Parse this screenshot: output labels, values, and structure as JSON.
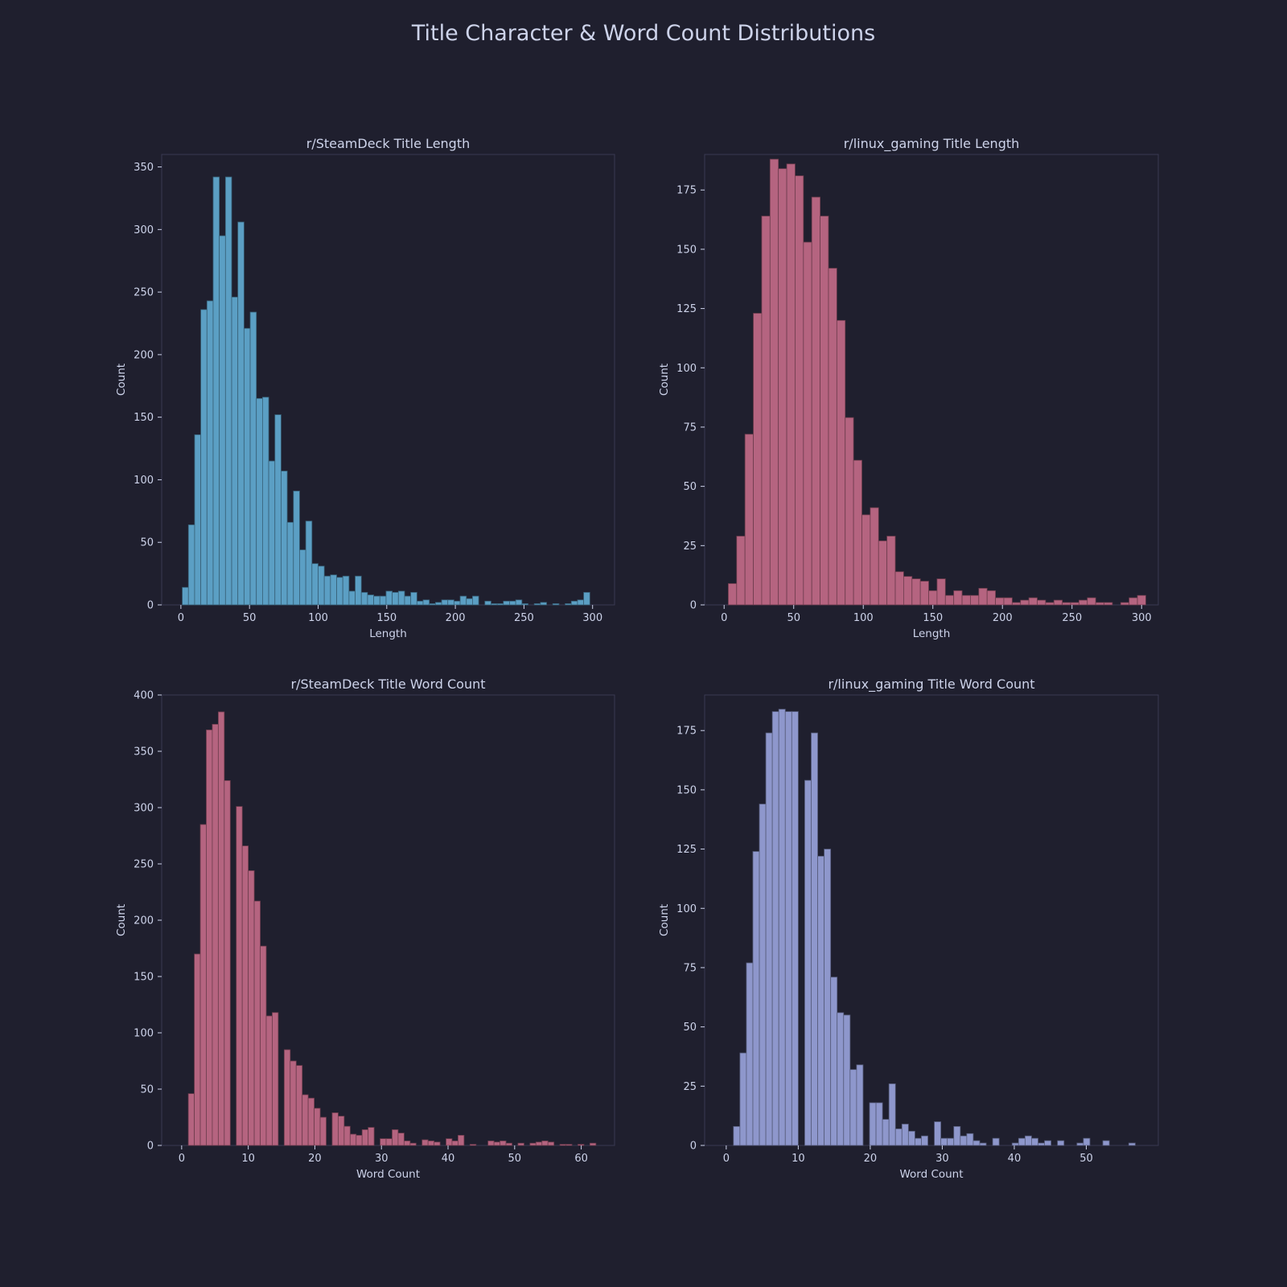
{
  "figure": {
    "title": "Title Character & Word Count Distributions",
    "background": "#1f1f2e",
    "panel_border": "#3a3a52",
    "text_color": "#cdd3ea"
  },
  "chart_data": [
    {
      "type": "bar",
      "title": "r/SteamDeck Title Length",
      "xlabel": "Length",
      "ylabel": "Count",
      "xlim": [
        -14,
        316
      ],
      "ylim": [
        0,
        360
      ],
      "xticks": [
        0,
        50,
        100,
        150,
        200,
        250,
        300
      ],
      "yticks": [
        0,
        50,
        100,
        150,
        200,
        250,
        300,
        350
      ],
      "color": "#5b9fc4",
      "bin_width": 4.5,
      "bin_start": 1,
      "values": [
        14,
        64,
        136,
        236,
        243,
        342,
        295,
        342,
        246,
        306,
        221,
        234,
        165,
        166,
        115,
        152,
        107,
        66,
        91,
        44,
        67,
        33,
        31,
        23,
        24,
        22,
        23,
        11,
        23,
        10,
        8,
        7,
        7,
        11,
        10,
        11,
        7,
        10,
        3,
        4,
        1,
        2,
        4,
        4,
        3,
        7,
        5,
        7,
        0,
        3,
        1,
        1,
        3,
        3,
        4,
        1,
        0,
        1,
        2,
        0,
        1,
        0,
        1,
        3,
        4,
        10
      ],
      "grid": false
    },
    {
      "type": "bar",
      "title": "r/linux_gaming Title Length",
      "xlabel": "Length",
      "ylabel": "Count",
      "xlim": [
        -14,
        312
      ],
      "ylim": [
        0,
        190
      ],
      "xticks": [
        0,
        50,
        100,
        150,
        200,
        250,
        300
      ],
      "yticks": [
        0,
        25,
        50,
        75,
        100,
        125,
        150,
        175
      ],
      "color": "#b56480",
      "bin_width": 6,
      "bin_start": 3,
      "values": [
        9,
        29,
        72,
        123,
        164,
        188,
        184,
        186,
        181,
        153,
        172,
        164,
        142,
        120,
        79,
        61,
        38,
        41,
        27,
        29,
        14,
        12,
        11,
        10,
        6,
        11,
        4,
        6,
        4,
        4,
        7,
        6,
        3,
        3,
        1,
        2,
        3,
        2,
        1,
        2,
        1,
        1,
        2,
        3,
        1,
        1,
        0,
        1,
        3,
        4
      ],
      "grid": false
    },
    {
      "type": "bar",
      "title": "r/SteamDeck Title Word Count",
      "xlabel": "Word Count",
      "ylabel": "Count",
      "xlim": [
        -3,
        65
      ],
      "ylim": [
        0,
        400
      ],
      "xticks": [
        0,
        10,
        20,
        30,
        40,
        50,
        60
      ],
      "yticks": [
        0,
        50,
        100,
        150,
        200,
        250,
        300,
        350,
        400
      ],
      "color": "#b56480",
      "bin_width": 0.9,
      "bin_start": 1,
      "values": [
        46,
        170,
        285,
        369,
        374,
        385,
        324,
        0,
        301,
        266,
        244,
        217,
        177,
        115,
        118,
        0,
        85,
        75,
        71,
        45,
        42,
        33,
        25,
        0,
        29,
        26,
        17,
        10,
        9,
        14,
        16,
        0,
        6,
        6,
        14,
        11,
        4,
        2,
        0,
        5,
        4,
        3,
        0,
        6,
        4,
        9,
        0,
        1,
        0,
        0,
        4,
        3,
        4,
        2,
        0,
        2,
        0,
        2,
        3,
        4,
        3,
        0,
        1,
        1,
        0,
        1,
        0,
        2
      ],
      "grid": false
    },
    {
      "type": "bar",
      "title": "r/linux_gaming Title Word Count",
      "xlabel": "Word Count",
      "ylabel": "Count",
      "xlim": [
        -3,
        60
      ],
      "ylim": [
        0,
        190
      ],
      "xticks": [
        0,
        10,
        20,
        30,
        40,
        50
      ],
      "yticks": [
        0,
        25,
        50,
        75,
        100,
        125,
        150,
        175
      ],
      "color": "#8e97cc",
      "bin_width": 0.9,
      "bin_start": 1,
      "values": [
        8,
        39,
        77,
        124,
        144,
        174,
        183,
        184,
        183,
        183,
        0,
        154,
        174,
        122,
        125,
        71,
        56,
        55,
        32,
        34,
        0,
        18,
        18,
        11,
        26,
        7,
        9,
        6,
        3,
        4,
        0,
        10,
        3,
        3,
        8,
        4,
        5,
        2,
        1,
        0,
        3,
        0,
        0,
        1,
        3,
        4,
        3,
        1,
        2,
        0,
        2,
        0,
        0,
        1,
        3,
        0,
        0,
        2,
        0,
        0,
        0,
        1
      ],
      "grid": false
    }
  ]
}
